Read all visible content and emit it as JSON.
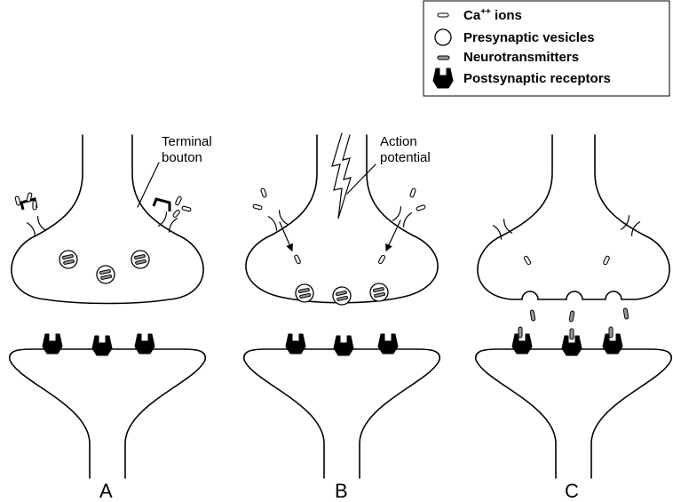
{
  "legend": {
    "ca_ions": "Ca",
    "ca_superscript": "++",
    "ca_suffix": " ions",
    "vesicles": "Presynaptic vesicles",
    "neurotransmitters": "Neurotransmitters",
    "receptors": "Postsynaptic receptors"
  },
  "labels": {
    "terminal_line1": "Terminal",
    "terminal_line2": "bouton",
    "action_line1": "Action",
    "action_line2": "potential"
  },
  "panels": [
    "A",
    "B",
    "C"
  ],
  "icons": {
    "ion": "ca-ion-icon",
    "vesicle": "vesicle-icon",
    "neurotransmitter": "neurotransmitter-icon",
    "receptor": "receptor-icon",
    "lightning": "lightning-bolt-icon"
  }
}
